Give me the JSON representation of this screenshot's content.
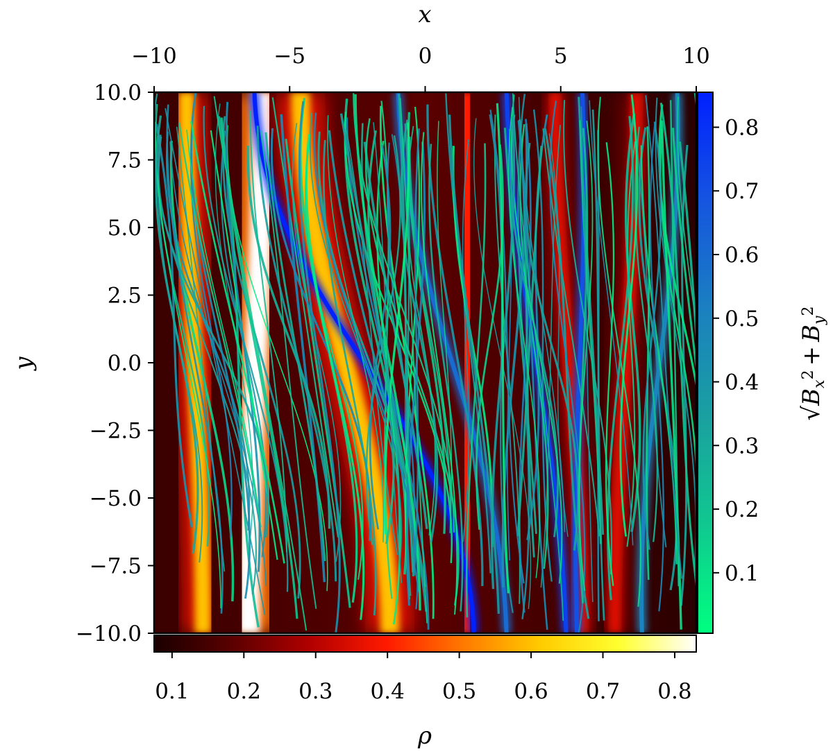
{
  "chart_data": {
    "type": "heatmap",
    "description_of_layers": [
      "density field rho (heatmap)",
      "magnetic field streamlines colored by sqrt(Bx^2+By^2)"
    ],
    "xlabel": "x",
    "ylabel": "y",
    "xlim": [
      -10,
      10
    ],
    "ylim": [
      -10,
      10
    ],
    "x_ticks": [
      -10,
      -5,
      0,
      5,
      10
    ],
    "x_tick_labels": [
      "−10",
      "−5",
      "0",
      "5",
      "10"
    ],
    "y_ticks": [
      10,
      7.5,
      5,
      2.5,
      0,
      -2.5,
      -5,
      -7.5,
      -10
    ],
    "y_tick_labels": [
      "10.0",
      "7.5",
      "5.0",
      "2.5",
      "0.0",
      "−2.5",
      "−5.0",
      "−7.5",
      "−10.0"
    ],
    "x_axis_position": "top",
    "grid": false,
    "colorbar_rho": {
      "label": "ρ",
      "orientation": "horizontal",
      "placement": "bottom",
      "range": [
        0.075,
        0.83
      ],
      "ticks": [
        0.1,
        0.2,
        0.3,
        0.4,
        0.5,
        0.6,
        0.7,
        0.8
      ],
      "tick_labels": [
        "0.1",
        "0.2",
        "0.3",
        "0.4",
        "0.5",
        "0.6",
        "0.7",
        "0.8"
      ],
      "colormap": [
        "#1a0000",
        "#5a0000",
        "#b00000",
        "#ff1a00",
        "#ff7a00",
        "#ffcc00",
        "#ffff30",
        "#ffffff"
      ]
    },
    "colorbar_B": {
      "label": "√(Bₓ² + Bᵧ²)",
      "label_parts": {
        "sqrt": "√",
        "b1": "B",
        "s1": "x",
        "e1": "2",
        "plus": "+",
        "b2": "B",
        "s2": "y",
        "e2": "2"
      },
      "orientation": "vertical",
      "placement": "right",
      "range": [
        0.005,
        0.855
      ],
      "ticks": [
        0.1,
        0.2,
        0.3,
        0.4,
        0.5,
        0.6,
        0.7,
        0.8
      ],
      "tick_labels": [
        "0.1",
        "0.2",
        "0.3",
        "0.4",
        "0.5",
        "0.6",
        "0.7",
        "0.8"
      ],
      "colormap": [
        "#00ff80",
        "#10c890",
        "#1aa0a0",
        "#1b80c0",
        "#1555e0",
        "#0020ff"
      ]
    },
    "density_ridges": [
      {
        "x_at_top": -6.0,
        "x_at_bottom": -6.5,
        "peak_rho": 0.83,
        "width": 0.8
      },
      {
        "x_at_top": -4.6,
        "x_at_bottom": -1.3,
        "peak_rho": 0.6,
        "width": 0.7
      },
      {
        "x_at_top": -8.8,
        "x_at_bottom": -8.2,
        "peak_rho": 0.6,
        "width": 0.6
      },
      {
        "x_at_top": 1.5,
        "x_at_bottom": 1.6,
        "peak_rho": 0.4,
        "width": 0.6
      },
      {
        "x_at_top": 4.8,
        "x_at_bottom": 5.8,
        "peak_rho": 0.35,
        "width": 0.5
      },
      {
        "x_at_top": 7.8,
        "x_at_bottom": 7.0,
        "peak_rho": 0.35,
        "width": 0.5
      }
    ],
    "strong_field_bands": [
      {
        "x_at_top": -6.3,
        "x_at_bottom": 1.8,
        "B": 0.85
      },
      {
        "x_at_top": -1.0,
        "x_at_bottom": 3.0,
        "B": 0.6
      },
      {
        "x_at_top": 3.0,
        "x_at_bottom": 5.2,
        "B": 0.75
      },
      {
        "x_at_top": 5.8,
        "x_at_bottom": 5.6,
        "B": 0.7
      },
      {
        "x_at_top": 9.3,
        "x_at_bottom": 8.0,
        "B": 0.5
      }
    ]
  }
}
